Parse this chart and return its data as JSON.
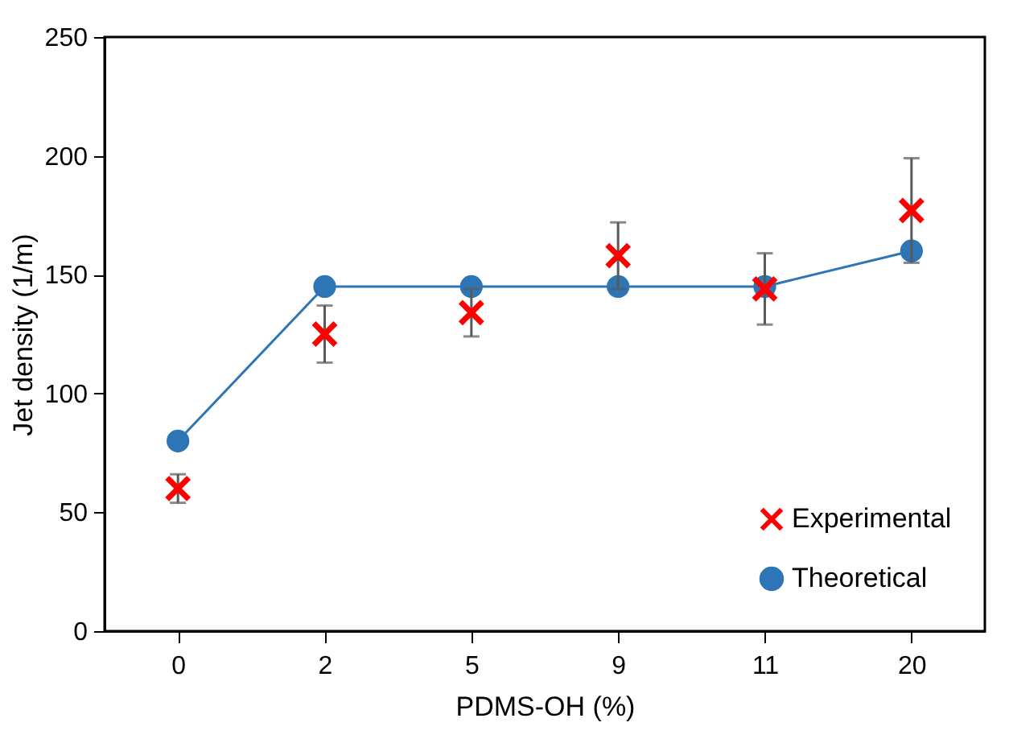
{
  "chart_data": {
    "type": "scatter",
    "xlabel": "PDMS-OH (%)",
    "ylabel": "Jet density (1/m)",
    "categories": [
      "0",
      "2",
      "5",
      "9",
      "11",
      "20"
    ],
    "series": [
      {
        "name": "Experimental",
        "type": "scatter",
        "color": "#ff0000",
        "marker": "cross",
        "values": [
          60,
          125,
          134,
          158,
          144,
          177
        ],
        "errors": [
          6,
          12,
          10,
          14,
          15,
          22
        ]
      },
      {
        "name": "Theoretical",
        "type": "line",
        "color": "#2e75b6",
        "marker": "circle",
        "line_style": "solid",
        "values": [
          80,
          145,
          145,
          145,
          145,
          160
        ]
      }
    ],
    "ylim": [
      0,
      250
    ],
    "yticks": [
      0,
      50,
      100,
      150,
      200,
      250
    ],
    "grid": false,
    "legend": "bottom right"
  }
}
